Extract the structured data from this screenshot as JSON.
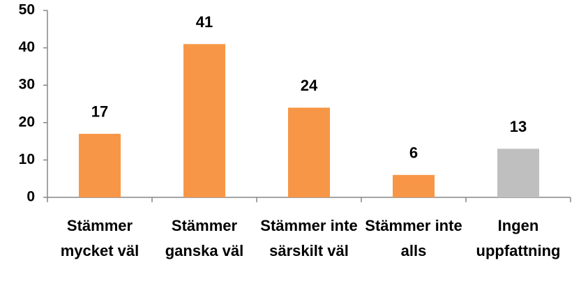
{
  "chart_data": {
    "type": "bar",
    "categories": [
      "Stämmer mycket väl",
      "Stämmer ganska väl",
      "Stämmer inte särskilt väl",
      "Stämmer inte alls",
      "Ingen uppfattning"
    ],
    "values": [
      17,
      41,
      24,
      6,
      13
    ],
    "colors": [
      "#f79646",
      "#f79646",
      "#f79646",
      "#f79646",
      "#bfbfbf"
    ],
    "ylim": [
      0,
      50
    ],
    "yticks": [
      0,
      10,
      20,
      30,
      40,
      50
    ],
    "grid": false
  }
}
